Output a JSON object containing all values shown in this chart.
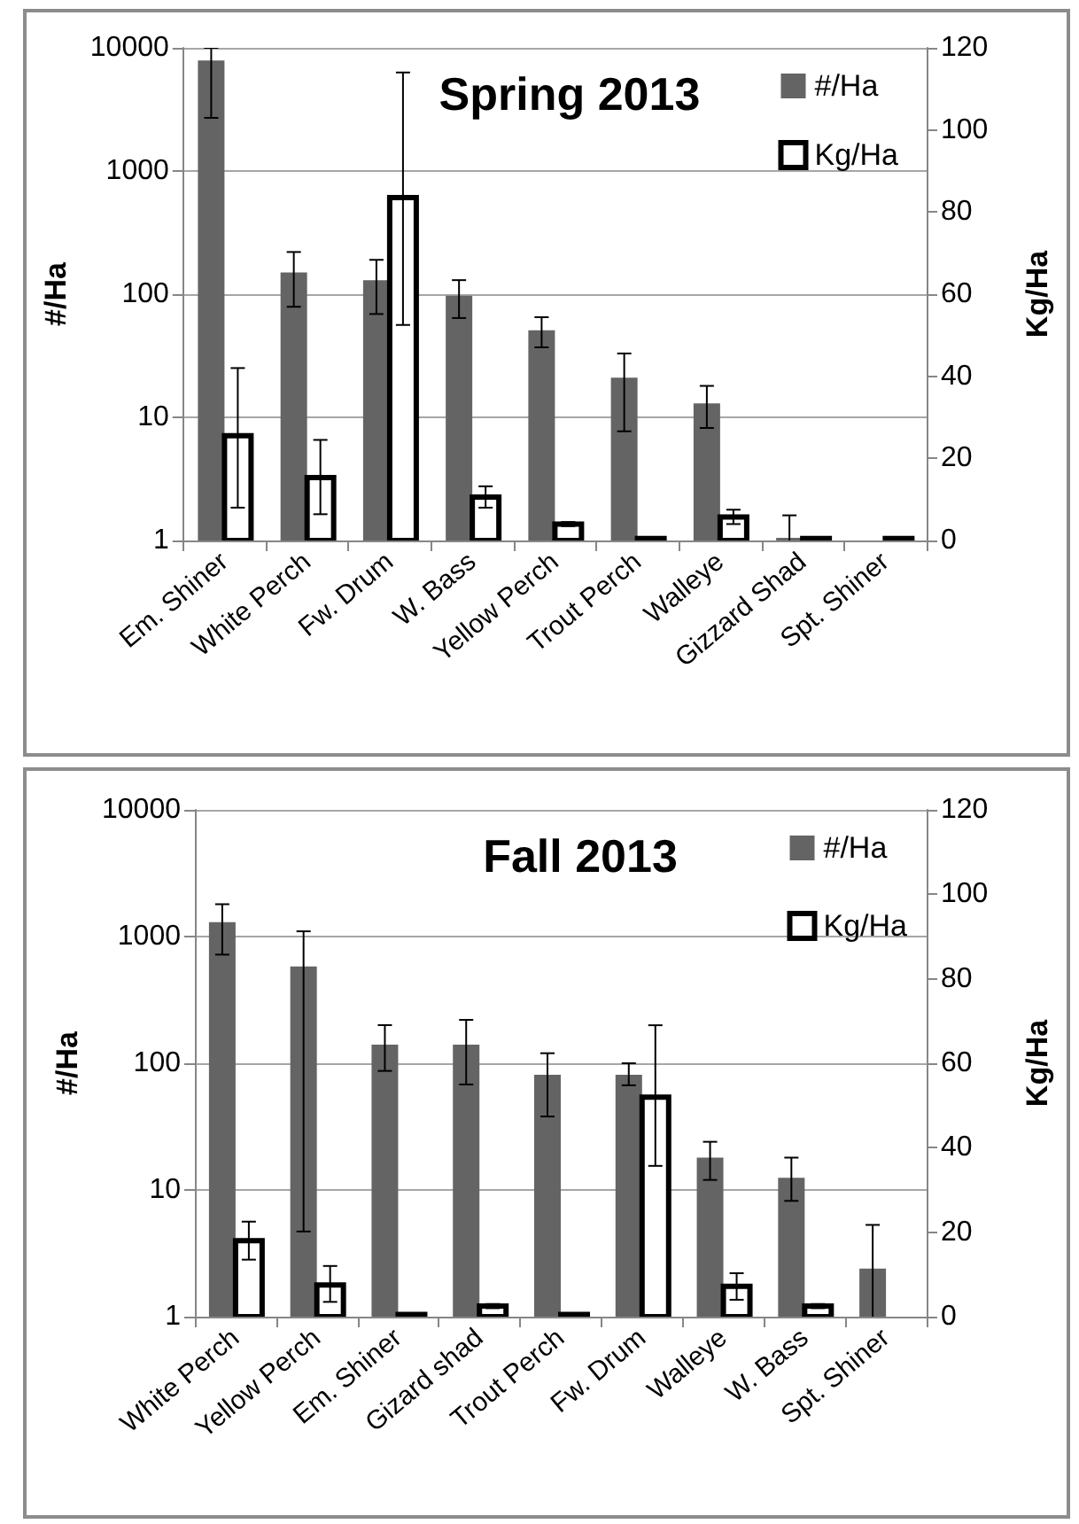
{
  "chart_data": [
    {
      "type": "bar",
      "title": "Spring 2013",
      "ylabel": "#/Ha",
      "y2label": "Kg/Ha",
      "categories": [
        "Em. Shiner",
        "White Perch",
        "Fw. Drum",
        "W. Bass",
        "Yellow Perch",
        "Trout Perch",
        "Walleye",
        "Gizzard Shad",
        "Spt. Shiner"
      ],
      "series": [
        {
          "name": "#/Ha",
          "color": "#646464",
          "values": [
            7900,
            150,
            130,
            97,
            51,
            21,
            13,
            1.05,
            null
          ],
          "errors": [
            [
              2700,
              10000
            ],
            [
              79,
              220
            ],
            [
              69,
              190
            ],
            [
              64,
              130
            ],
            [
              37,
              65
            ],
            [
              7.7,
              33
            ],
            [
              8.2,
              18
            ],
            [
              1,
              1.6
            ],
            null
          ]
        },
        {
          "name": "Kg/Ha",
          "color": "#ffffff",
          "axis": "y2",
          "values": [
            25.5,
            15.3,
            83.5,
            10.6,
            4,
            0.5,
            5.7,
            0.5,
            0.5
          ],
          "errors": [
            [
              8,
              42
            ],
            [
              6.4,
              24.5
            ],
            [
              52.5,
              114
            ],
            [
              8,
              13.2
            ],
            [
              3.5,
              4.5
            ],
            null,
            [
              4,
              7.5
            ],
            null,
            null
          ]
        }
      ],
      "log": "y",
      "ylim": [
        1,
        10000
      ],
      "yticks": [
        1,
        10,
        100,
        1000,
        10000
      ],
      "y2lim": [
        0,
        120
      ],
      "y2ticks": [
        0,
        20,
        40,
        60,
        80,
        100,
        120
      ],
      "grid": "y",
      "legend": "top right"
    },
    {
      "type": "bar",
      "title": "Fall 2013",
      "ylabel": "#/Ha",
      "y2label": "Kg/Ha",
      "categories": [
        "White Perch",
        "Yellow Perch",
        "Em. Shiner",
        "Gizard shad",
        "Trout Perch",
        "Fw. Drum",
        "Walleye",
        "W. Bass",
        "Spt. Shiner"
      ],
      "series": [
        {
          "name": "#/Ha",
          "color": "#646464",
          "values": [
            1300,
            580,
            140,
            140,
            81,
            81,
            18,
            12.5,
            2.4
          ],
          "errors": [
            [
              720,
              1800
            ],
            [
              4.7,
              1100
            ],
            [
              87,
              200
            ],
            [
              68,
              220
            ],
            [
              38,
              120
            ],
            [
              67,
              100
            ],
            [
              12,
              24
            ],
            [
              8.2,
              18
            ],
            [
              1,
              5.3
            ]
          ]
        },
        {
          "name": "Kg/Ha",
          "color": "#ffffff",
          "axis": "y2",
          "values": [
            18,
            7.5,
            0.5,
            2.5,
            0.5,
            52,
            7.2,
            2.5,
            null
          ],
          "errors": [
            [
              13.5,
              22.5
            ],
            [
              3.5,
              12
            ],
            null,
            [
              2,
              3
            ],
            null,
            [
              35.7,
              69
            ],
            [
              4,
              10.3
            ],
            [
              2,
              3
            ],
            null
          ]
        }
      ],
      "log": "y",
      "ylim": [
        1,
        10000
      ],
      "yticks": [
        1,
        10,
        100,
        1000,
        10000
      ],
      "y2lim": [
        0,
        120
      ],
      "y2ticks": [
        0,
        20,
        40,
        60,
        80,
        100,
        120
      ],
      "grid": "y",
      "legend": "top right"
    }
  ]
}
